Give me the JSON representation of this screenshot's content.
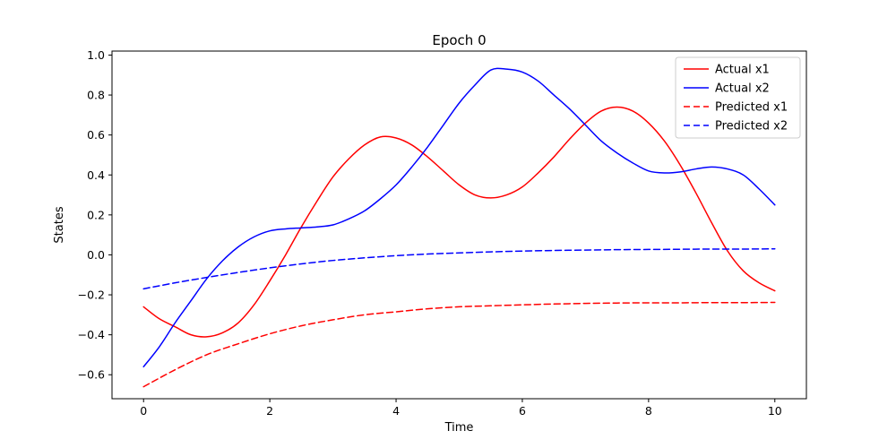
{
  "figure": {
    "title": "Epoch 0",
    "xlabel": "Time",
    "ylabel": "States"
  },
  "chart_data": {
    "type": "line",
    "title": "Epoch 0",
    "xlabel": "Time",
    "ylabel": "States",
    "xlim": [
      -0.5,
      10.5
    ],
    "ylim": [
      -0.72,
      1.02
    ],
    "xticks": [
      0,
      2,
      4,
      6,
      8,
      10
    ],
    "yticks": [
      -0.6,
      -0.4,
      -0.2,
      0.0,
      0.2,
      0.4,
      0.6,
      0.8,
      1.0
    ],
    "grid": false,
    "legend_position": "upper right",
    "colors": {
      "red": "#ff0000",
      "blue": "#0000ff",
      "legend_edge": "#cccccc",
      "spine": "#000000"
    },
    "series": [
      {
        "name": "Actual x1",
        "color": "#ff0000",
        "style": "solid",
        "x": [
          0,
          0.25,
          0.5,
          0.75,
          1,
          1.25,
          1.5,
          1.75,
          2,
          2.25,
          2.5,
          2.75,
          3,
          3.25,
          3.5,
          3.75,
          4,
          4.25,
          4.5,
          4.75,
          5,
          5.25,
          5.5,
          5.75,
          6,
          6.25,
          6.5,
          6.75,
          7,
          7.25,
          7.5,
          7.75,
          8,
          8.25,
          8.5,
          8.75,
          9,
          9.25,
          9.5,
          9.75,
          10
        ],
        "y": [
          -0.26,
          -0.32,
          -0.36,
          -0.4,
          -0.41,
          -0.39,
          -0.34,
          -0.25,
          -0.13,
          0.0,
          0.14,
          0.27,
          0.39,
          0.48,
          0.55,
          0.59,
          0.585,
          0.55,
          0.49,
          0.42,
          0.35,
          0.3,
          0.285,
          0.3,
          0.34,
          0.41,
          0.49,
          0.58,
          0.66,
          0.72,
          0.74,
          0.72,
          0.66,
          0.57,
          0.45,
          0.31,
          0.16,
          0.02,
          -0.08,
          -0.14,
          -0.18
        ]
      },
      {
        "name": "Actual x2",
        "color": "#0000ff",
        "style": "solid",
        "x": [
          0,
          0.25,
          0.5,
          0.75,
          1,
          1.25,
          1.5,
          1.75,
          2,
          2.25,
          2.5,
          2.75,
          3,
          3.25,
          3.5,
          3.75,
          4,
          4.25,
          4.5,
          4.75,
          5,
          5.25,
          5.5,
          5.75,
          6,
          6.25,
          6.5,
          6.75,
          7,
          7.25,
          7.5,
          7.75,
          8,
          8.25,
          8.5,
          8.75,
          9,
          9.25,
          9.5,
          9.75,
          10
        ],
        "y": [
          -0.56,
          -0.46,
          -0.34,
          -0.23,
          -0.12,
          -0.03,
          0.04,
          0.09,
          0.12,
          0.13,
          0.135,
          0.14,
          0.15,
          0.18,
          0.22,
          0.28,
          0.35,
          0.44,
          0.54,
          0.65,
          0.76,
          0.85,
          0.925,
          0.93,
          0.915,
          0.87,
          0.8,
          0.73,
          0.65,
          0.57,
          0.51,
          0.46,
          0.42,
          0.41,
          0.415,
          0.43,
          0.44,
          0.43,
          0.4,
          0.33,
          0.25
        ]
      },
      {
        "name": "Predicted x1",
        "color": "#ff0000",
        "style": "dashed",
        "x": [
          0,
          0.5,
          1,
          1.5,
          2,
          2.5,
          3,
          3.5,
          4,
          4.5,
          5,
          5.5,
          6,
          6.5,
          7,
          7.5,
          8,
          8.5,
          9,
          9.5,
          10
        ],
        "y": [
          -0.66,
          -0.575,
          -0.5,
          -0.445,
          -0.395,
          -0.355,
          -0.325,
          -0.3,
          -0.285,
          -0.27,
          -0.26,
          -0.255,
          -0.25,
          -0.246,
          -0.243,
          -0.241,
          -0.24,
          -0.24,
          -0.239,
          -0.239,
          -0.238
        ]
      },
      {
        "name": "Predicted x2",
        "color": "#0000ff",
        "style": "dashed",
        "x": [
          0,
          0.5,
          1,
          1.5,
          2,
          2.5,
          3,
          3.5,
          4,
          4.5,
          5,
          5.5,
          6,
          6.5,
          7,
          7.5,
          8,
          8.5,
          9,
          9.5,
          10
        ],
        "y": [
          -0.17,
          -0.14,
          -0.113,
          -0.088,
          -0.065,
          -0.045,
          -0.028,
          -0.015,
          -0.004,
          0.004,
          0.01,
          0.015,
          0.019,
          0.022,
          0.024,
          0.026,
          0.027,
          0.028,
          0.029,
          0.029,
          0.03
        ]
      }
    ]
  }
}
